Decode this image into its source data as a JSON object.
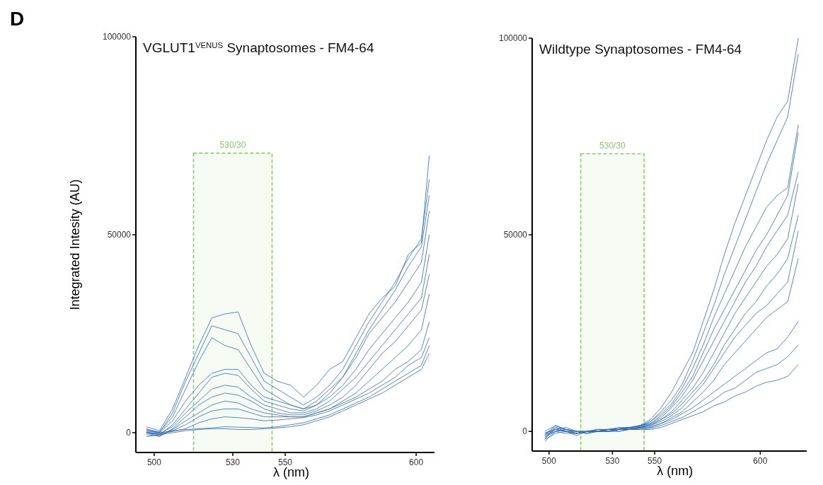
{
  "chart_data": [
    {
      "type": "line",
      "title": "VGLUT1$^{VENUS}$ Synaptosomes - FM4-64",
      "xlabel": "λ (nm)",
      "ylabel": "Integrated Intesity (AU)",
      "annotations": [
        "D"
      ],
      "x": [
        497,
        502,
        507,
        512,
        517,
        522,
        527,
        532,
        537,
        542,
        547,
        552,
        557,
        562,
        567,
        572,
        577,
        582,
        587,
        592,
        597,
        602,
        605
      ],
      "xlim": [
        493,
        607
      ],
      "xticks": [
        500,
        530,
        550,
        600
      ],
      "ylim": [
        -5000,
        100000
      ],
      "yticks": [
        0,
        50000,
        100000
      ],
      "grid": false,
      "line_style": "solid",
      "bands": [
        {
          "axis": "x",
          "from": 515,
          "to": 545,
          "label": "530/30",
          "color": "#8dc96b"
        }
      ],
      "series": [
        {
          "color": "#2e6ab4",
          "values": [
            1500,
            500,
            6000,
            14000,
            22000,
            29000,
            30000,
            30500,
            22000,
            15000,
            13000,
            12000,
            9000,
            12000,
            16000,
            18000,
            24000,
            30000,
            34000,
            37000,
            45000,
            48000,
            70000
          ]
        },
        {
          "color": "#2e6ab4",
          "values": [
            1000,
            0,
            5000,
            13000,
            20000,
            27000,
            26000,
            25000,
            19000,
            13000,
            11000,
            9000,
            7000,
            9000,
            12000,
            16000,
            22000,
            28000,
            33000,
            38000,
            44000,
            49000,
            64000
          ]
        },
        {
          "color": "#2e6ab4",
          "values": [
            800,
            200,
            4000,
            11000,
            18000,
            24000,
            22000,
            21000,
            16000,
            11000,
            9000,
            7000,
            6000,
            7000,
            10000,
            14000,
            20000,
            26000,
            31000,
            36000,
            42000,
            47000,
            60000
          ]
        },
        {
          "color": "#2e6ab4",
          "values": [
            500,
            0,
            3000,
            8000,
            12000,
            15000,
            16000,
            16000,
            12000,
            9000,
            8000,
            7000,
            6000,
            8000,
            11000,
            14000,
            19000,
            25000,
            29000,
            33000,
            38000,
            43000,
            56000
          ]
        },
        {
          "color": "#2e6ab4",
          "values": [
            0,
            -500,
            2000,
            6000,
            10000,
            14000,
            15000,
            14500,
            11000,
            8000,
            7000,
            6000,
            5500,
            7000,
            9000,
            12000,
            16000,
            21000,
            25000,
            29000,
            33000,
            38000,
            50000
          ]
        },
        {
          "color": "#2e6ab4",
          "values": [
            200,
            -300,
            1500,
            5000,
            8000,
            11000,
            12000,
            11500,
            9000,
            7000,
            6000,
            5000,
            5000,
            6000,
            8000,
            11000,
            14000,
            18000,
            22000,
            26000,
            30000,
            34000,
            45000
          ]
        },
        {
          "color": "#2e6ab4",
          "values": [
            0,
            -1000,
            1000,
            4000,
            7000,
            9000,
            10000,
            9500,
            8000,
            6000,
            5000,
            4500,
            4500,
            5500,
            7000,
            9000,
            12000,
            16000,
            20000,
            23000,
            27000,
            31000,
            40000
          ]
        },
        {
          "color": "#2e6ab4",
          "values": [
            -500,
            -800,
            800,
            3000,
            5000,
            7000,
            8000,
            7500,
            6000,
            5000,
            4500,
            4000,
            4000,
            5000,
            6000,
            8000,
            10000,
            13000,
            16000,
            19000,
            22000,
            26000,
            35000
          ]
        },
        {
          "color": "#2e6ab4",
          "values": [
            0,
            -500,
            500,
            2000,
            4000,
            5500,
            6000,
            6000,
            5000,
            4000,
            4000,
            4000,
            4000,
            5000,
            6000,
            7500,
            9000,
            11000,
            13000,
            16000,
            18000,
            21000,
            28000
          ]
        },
        {
          "color": "#2e6ab4",
          "values": [
            0,
            -200,
            300,
            1000,
            2500,
            3500,
            4000,
            3800,
            3500,
            3000,
            3200,
            3500,
            3800,
            4500,
            5500,
            7000,
            8500,
            10000,
            12000,
            14000,
            17000,
            19000,
            24000
          ]
        },
        {
          "color": "#2e6ab4",
          "values": [
            500,
            0,
            500,
            800,
            1000,
            1200,
            1500,
            1400,
            1300,
            1200,
            1500,
            2000,
            2500,
            3500,
            4500,
            6000,
            7500,
            9000,
            11000,
            13000,
            15000,
            17000,
            22000
          ]
        },
        {
          "color": "#2e6ab4",
          "values": [
            -1000,
            -500,
            0,
            500,
            800,
            1000,
            1000,
            800,
            800,
            1000,
            1200,
            1500,
            2000,
            3000,
            4000,
            5500,
            7000,
            8500,
            10000,
            12000,
            14000,
            16000,
            20000
          ]
        }
      ]
    },
    {
      "type": "line",
      "title": "Wildtype Synaptosomes - FM4-64",
      "xlabel": "λ (nm)",
      "x": [
        498,
        503,
        508,
        513,
        518,
        523,
        528,
        533,
        538,
        543,
        548,
        553,
        558,
        563,
        568,
        573,
        578,
        583,
        588,
        593,
        598,
        603,
        608,
        613,
        618
      ],
      "xlim": [
        492,
        622
      ],
      "xticks": [
        500,
        530,
        550,
        600
      ],
      "ylim": [
        -5000,
        100000
      ],
      "yticks": [
        0,
        50000,
        100000
      ],
      "grid": false,
      "line_style": "solid",
      "bands": [
        {
          "axis": "x",
          "from": 515,
          "to": 545,
          "label": "530/30",
          "color": "#8dc96b"
        }
      ],
      "series": [
        {
          "color": "#2e6ab4",
          "values": [
            -2000,
            1000,
            500,
            -500,
            0,
            0,
            500,
            500,
            1000,
            1500,
            3000,
            6000,
            10000,
            15000,
            20000,
            28000,
            36000,
            45000,
            53000,
            60000,
            67000,
            74000,
            80000,
            84000,
            100000
          ]
        },
        {
          "color": "#2e6ab4",
          "values": [
            -1000,
            1500,
            500,
            0,
            -500,
            0,
            500,
            1000,
            1000,
            1500,
            2500,
            5000,
            8000,
            12000,
            18000,
            25000,
            32000,
            40000,
            47000,
            54000,
            61000,
            68000,
            74000,
            80000,
            96000
          ]
        },
        {
          "color": "#2e6ab4",
          "values": [
            -1500,
            500,
            1000,
            0,
            0,
            500,
            0,
            500,
            1000,
            1200,
            2500,
            4500,
            7000,
            11000,
            16000,
            22000,
            29000,
            35000,
            41000,
            47000,
            52000,
            57000,
            60000,
            62000,
            78000
          ]
        },
        {
          "color": "#2e6ab4",
          "values": [
            -500,
            1000,
            0,
            -500,
            0,
            0,
            500,
            500,
            800,
            1500,
            2000,
            4000,
            6500,
            10000,
            14000,
            20000,
            26000,
            31000,
            36000,
            41000,
            46000,
            50000,
            55000,
            60000,
            76000
          ]
        },
        {
          "color": "#2e6ab4",
          "values": [
            -2500,
            0,
            500,
            0,
            -500,
            500,
            500,
            800,
            1000,
            1200,
            2000,
            3500,
            6000,
            9000,
            13000,
            18000,
            23000,
            28000,
            33000,
            38000,
            42000,
            47000,
            51000,
            55000,
            66000
          ]
        },
        {
          "color": "#2e6ab4",
          "values": [
            -1000,
            500,
            0,
            -1000,
            0,
            0,
            0,
            500,
            500,
            1000,
            1800,
            3000,
            5000,
            8000,
            11000,
            15000,
            20000,
            25000,
            30000,
            34000,
            38000,
            42000,
            45000,
            49000,
            63000
          ]
        },
        {
          "color": "#2e6ab4",
          "values": [
            0,
            1500,
            500,
            0,
            0,
            500,
            500,
            500,
            800,
            1000,
            1500,
            3000,
            4500,
            7000,
            10000,
            13000,
            17000,
            22000,
            26000,
            30000,
            33000,
            37000,
            40000,
            44000,
            55000
          ]
        },
        {
          "color": "#2e6ab4",
          "values": [
            -1500,
            0,
            -500,
            -500,
            0,
            0,
            0,
            500,
            500,
            1000,
            1500,
            2500,
            4000,
            6000,
            9000,
            12000,
            16000,
            20000,
            24000,
            27000,
            30000,
            32000,
            35000,
            38000,
            51000
          ]
        },
        {
          "color": "#2e6ab4",
          "values": [
            -500,
            500,
            0,
            0,
            -500,
            0,
            500,
            0,
            500,
            800,
            1200,
            2000,
            3500,
            5000,
            7500,
            10000,
            13000,
            17000,
            20000,
            23000,
            26000,
            29000,
            31000,
            33000,
            44000
          ]
        },
        {
          "color": "#2e6ab4",
          "values": [
            -2000,
            -500,
            0,
            -500,
            0,
            0,
            0,
            500,
            500,
            800,
            1000,
            2000,
            3000,
            4500,
            6000,
            8000,
            10000,
            12000,
            14000,
            16000,
            18000,
            20000,
            21000,
            24000,
            28000
          ]
        },
        {
          "color": "#2e6ab4",
          "values": [
            -1000,
            0,
            500,
            0,
            0,
            0,
            500,
            500,
            500,
            500,
            800,
            1500,
            2500,
            3500,
            5000,
            6500,
            8000,
            10000,
            11000,
            13000,
            15000,
            16000,
            17000,
            19000,
            22000
          ]
        },
        {
          "color": "#2e6ab4",
          "values": [
            -500,
            500,
            0,
            -500,
            0,
            0,
            0,
            0,
            500,
            500,
            500,
            1000,
            2000,
            3000,
            4000,
            5000,
            6500,
            7500,
            9000,
            10000,
            11500,
            12500,
            13000,
            14000,
            17000
          ]
        }
      ]
    }
  ]
}
